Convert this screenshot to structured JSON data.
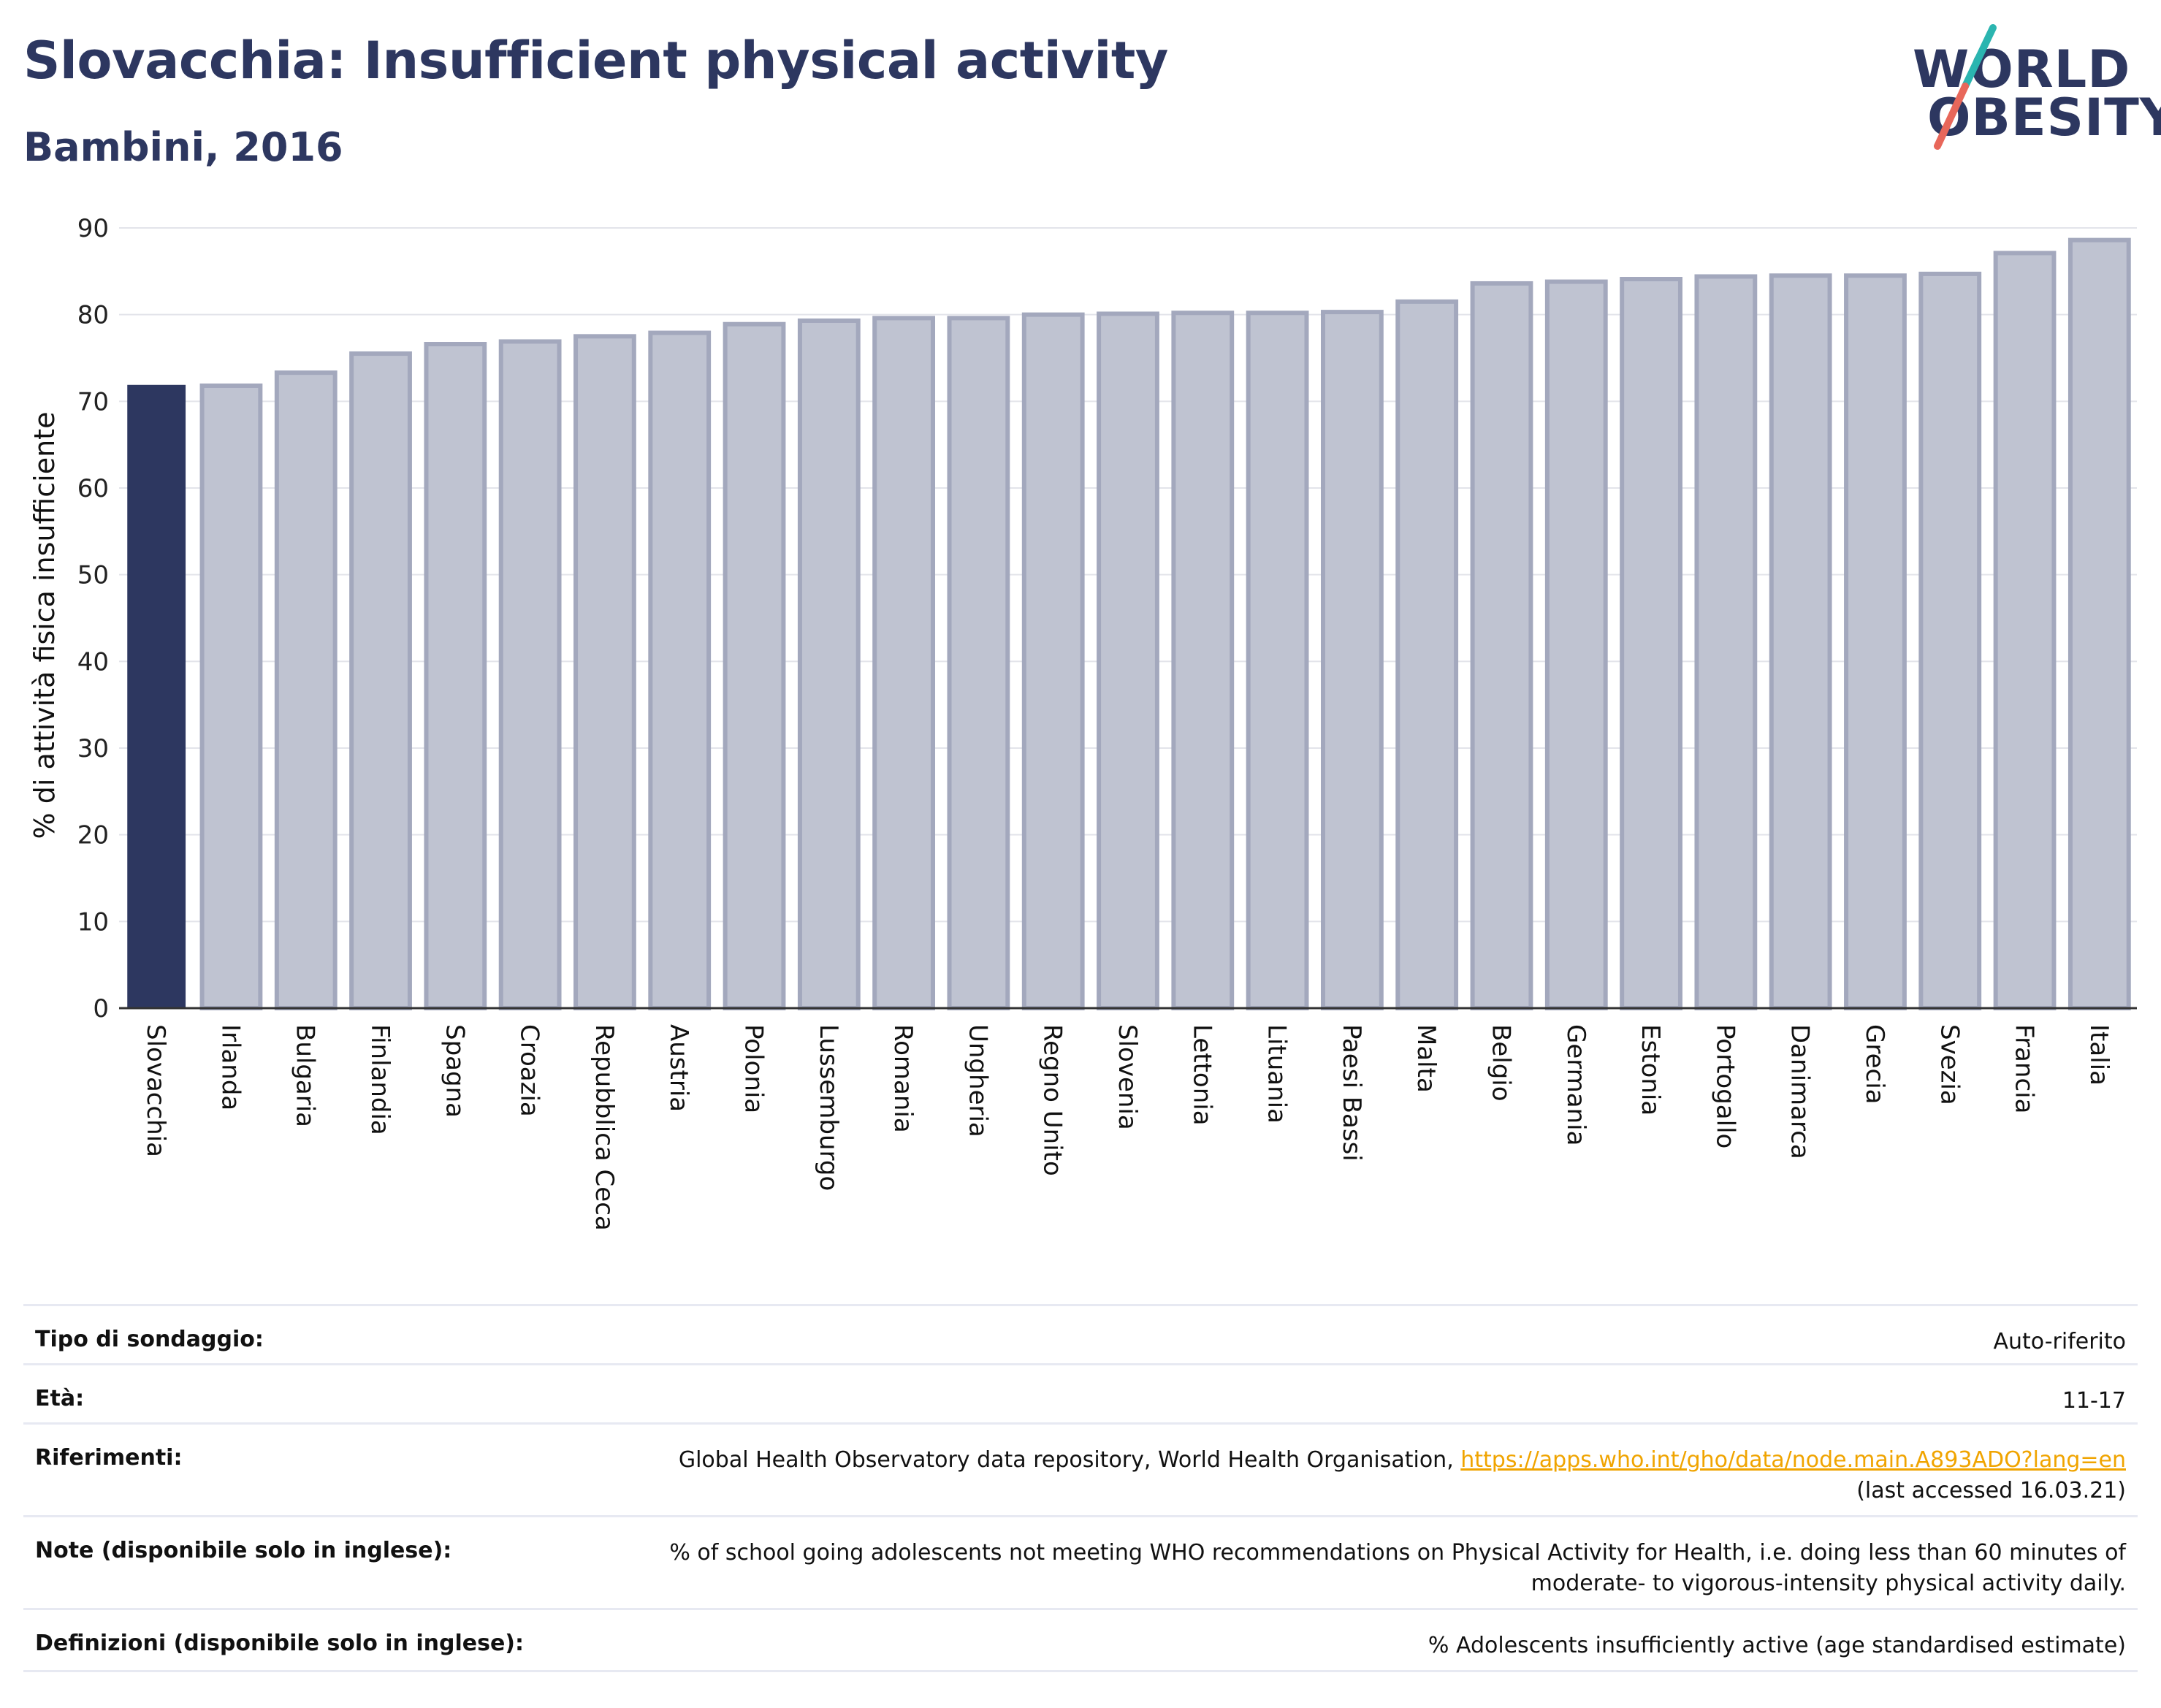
{
  "header": {
    "title": "Slovacchia: Insufficient physical activity",
    "subtitle": "Bambini, 2016"
  },
  "logo": {
    "line1": "WORLD",
    "line2": "OBESITY",
    "slash_colors": [
      "#2bb5b0",
      "#e8675a"
    ]
  },
  "colors": {
    "highlight_bar": "#2d3760",
    "other_bar_fill": "#bfc3d1",
    "other_bar_stroke": "#a3a8bd",
    "grid": "#e3e4ea",
    "link": "#f0a400"
  },
  "chart_data": {
    "type": "bar",
    "ylabel": "% di attività fisica insufficiente",
    "xlabel": "",
    "ylim": [
      0,
      90
    ],
    "yticks": [
      0,
      10,
      20,
      30,
      40,
      50,
      60,
      70,
      80,
      90
    ],
    "grid": true,
    "highlight": "Slovacchia",
    "categories": [
      "Slovacchia",
      "Irlanda",
      "Bulgaria",
      "Finlandia",
      "Spagna",
      "Croazia",
      "Repubblica Ceca",
      "Austria",
      "Polonia",
      "Lussemburgo",
      "Romania",
      "Ungheria",
      "Regno Unito",
      "Slovenia",
      "Lettonia",
      "Lituania",
      "Paesi Bassi",
      "Malta",
      "Belgio",
      "Germania",
      "Estonia",
      "Portogallo",
      "Danimarca",
      "Grecia",
      "Svezia",
      "Francia",
      "Italia"
    ],
    "values": [
      71.9,
      71.8,
      73.3,
      75.5,
      76.6,
      76.9,
      77.5,
      77.9,
      78.9,
      79.3,
      79.6,
      79.6,
      80.0,
      80.1,
      80.2,
      80.2,
      80.3,
      81.5,
      83.6,
      83.8,
      84.1,
      84.4,
      84.5,
      84.5,
      84.7,
      87.1,
      88.6
    ]
  },
  "info": {
    "survey_label": "Tipo di sondaggio:",
    "survey_value": "Auto-riferito",
    "age_label": "Età:",
    "age_value": "11-17",
    "refs_label": "Riferimenti:",
    "refs_text": "Global Health Observatory data repository, World Health Organisation, ",
    "refs_link": "https://apps.who.int/gho/data/node.main.A893ADO?lang=en",
    "refs_accessed": "(last accessed 16.03.21)",
    "notes_label": "Note (disponibile solo in inglese):",
    "notes_line1": "% of school going adolescents not meeting WHO recommendations on Physical Activity for Health, i.e. doing less than 60 minutes of",
    "notes_line2": "moderate- to vigorous-intensity physical activity daily.",
    "defs_label": "Definizioni (disponibile solo in inglese):",
    "defs_value": "% Adolescents insufficiently active (age standardised estimate)"
  }
}
